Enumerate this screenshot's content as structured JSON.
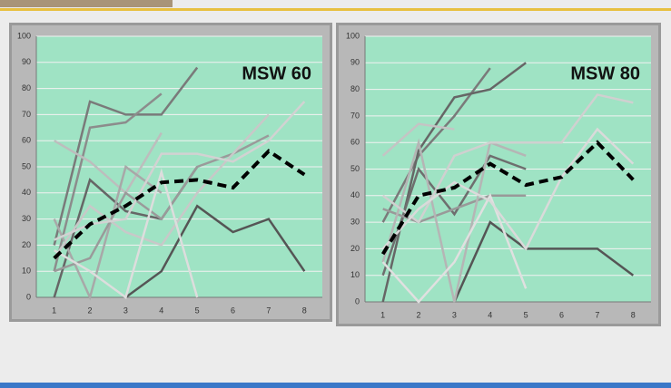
{
  "chart_data": [
    {
      "type": "line",
      "title": "MSW 60",
      "categories": [
        "1",
        "2",
        "3",
        "4",
        "5",
        "6",
        "7",
        "8"
      ],
      "ylim": [
        0,
        100
      ],
      "yticks": [
        0,
        10,
        20,
        30,
        40,
        50,
        60,
        70,
        80,
        90,
        100
      ],
      "grid": true,
      "series": [
        {
          "color": "#7a7a7a",
          "values": [
            20,
            75,
            70,
            70,
            88,
            null,
            null,
            null
          ]
        },
        {
          "color": "#8c8c8c",
          "values": [
            10,
            65,
            67,
            78,
            null,
            null,
            null,
            null
          ]
        },
        {
          "color": "#666666",
          "values": [
            0,
            45,
            33,
            30,
            50,
            null,
            null,
            null
          ]
        },
        {
          "color": "#555555",
          "values": [
            null,
            null,
            0,
            10,
            35,
            25,
            30,
            10
          ]
        },
        {
          "color": "#bdbdbd",
          "values": [
            60,
            52,
            40,
            63,
            null,
            null,
            null,
            null
          ]
        },
        {
          "color": "#a8a8a8",
          "values": [
            30,
            0,
            50,
            40,
            null,
            null,
            null,
            null
          ]
        },
        {
          "color": "#9a9a9a",
          "values": [
            10,
            15,
            40,
            30,
            50,
            55,
            62,
            null
          ]
        },
        {
          "color": "#c8c8c8",
          "values": [
            15,
            35,
            25,
            20,
            40,
            55,
            70,
            null
          ]
        },
        {
          "color": "#dddddd",
          "values": [
            18,
            10,
            0,
            48,
            0,
            null,
            null,
            null
          ]
        },
        {
          "color": "#d2d2d2",
          "values": [
            22,
            28,
            30,
            55,
            55,
            52,
            60,
            75
          ]
        },
        {
          "color": "#000000",
          "dash": true,
          "values": [
            15,
            28,
            35,
            44,
            45,
            42,
            56,
            47
          ]
        }
      ]
    },
    {
      "type": "line",
      "title": "MSW 80",
      "categories": [
        "1",
        "2",
        "3",
        "4",
        "5",
        "6",
        "7",
        "8"
      ],
      "ylim": [
        0,
        100
      ],
      "yticks": [
        0,
        10,
        20,
        30,
        40,
        50,
        60,
        70,
        80,
        90,
        100
      ],
      "grid": true,
      "series": [
        {
          "color": "#7a7a7a",
          "values": [
            30,
            55,
            70,
            88,
            null,
            null,
            null,
            null
          ]
        },
        {
          "color": "#666666",
          "values": [
            0,
            57,
            77,
            80,
            90,
            null,
            null,
            null
          ]
        },
        {
          "color": "#555555",
          "values": [
            null,
            null,
            0,
            30,
            20,
            20,
            20,
            10
          ]
        },
        {
          "color": "#6e6e6e",
          "values": [
            10,
            50,
            33,
            55,
            50,
            null,
            null,
            null
          ]
        },
        {
          "color": "#c4c4c4",
          "values": [
            55,
            67,
            65,
            null,
            null,
            null,
            null,
            null
          ]
        },
        {
          "color": "#999999",
          "values": [
            35,
            30,
            35,
            40,
            40,
            null,
            null,
            null
          ]
        },
        {
          "color": "#b5b5b5",
          "values": [
            15,
            60,
            0,
            60,
            55,
            null,
            null,
            null
          ]
        },
        {
          "color": "#e0e0e0",
          "values": [
            15,
            0,
            15,
            40,
            5,
            null,
            null,
            null
          ]
        },
        {
          "color": "#d0d0d0",
          "values": [
            40,
            30,
            55,
            60,
            60,
            60,
            78,
            75
          ]
        },
        {
          "color": "#dadada",
          "values": [
            20,
            35,
            45,
            38,
            20,
            47,
            65,
            52
          ]
        },
        {
          "color": "#000000",
          "dash": true,
          "values": [
            18,
            40,
            43,
            52,
            44,
            47,
            60,
            46
          ]
        }
      ]
    }
  ]
}
